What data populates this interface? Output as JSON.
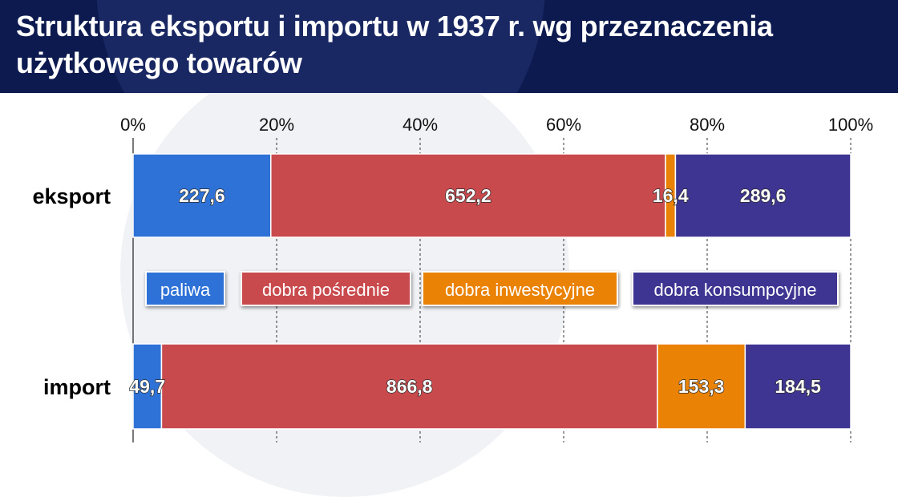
{
  "header": {
    "title": "Struktura eksportu i importu w 1937 r. wg przeznaczenia użytkowego towarów"
  },
  "chart_data": {
    "type": "bar",
    "orientation": "horizontal",
    "stacked": "percent",
    "title": "Struktura eksportu i importu w 1937 r. wg przeznaczenia użytkowego towarów",
    "categories": [
      "eksport",
      "import"
    ],
    "xlim": [
      0,
      100
    ],
    "x_ticks": [
      "0%",
      "20%",
      "40%",
      "60%",
      "80%",
      "100%"
    ],
    "grid": "vertical dashed",
    "legend_position": "center",
    "series": [
      {
        "name": "paliwa",
        "color": "#2e72d8",
        "values": [
          227.6,
          49.7
        ],
        "labels": [
          "227,6",
          "49,7"
        ]
      },
      {
        "name": "dobra pośrednie",
        "color": "#c94a4d",
        "values": [
          652.2,
          866.8
        ],
        "labels": [
          "652,2",
          "866,8"
        ]
      },
      {
        "name": "dobra inwestycyjne",
        "color": "#ea8205",
        "values": [
          16.4,
          153.3
        ],
        "labels": [
          "16,4",
          "153,3"
        ]
      },
      {
        "name": "dobra konsumpcyjne",
        "color": "#3d3591",
        "values": [
          289.6,
          184.5
        ],
        "labels": [
          "289,6",
          "184,5"
        ]
      }
    ]
  }
}
